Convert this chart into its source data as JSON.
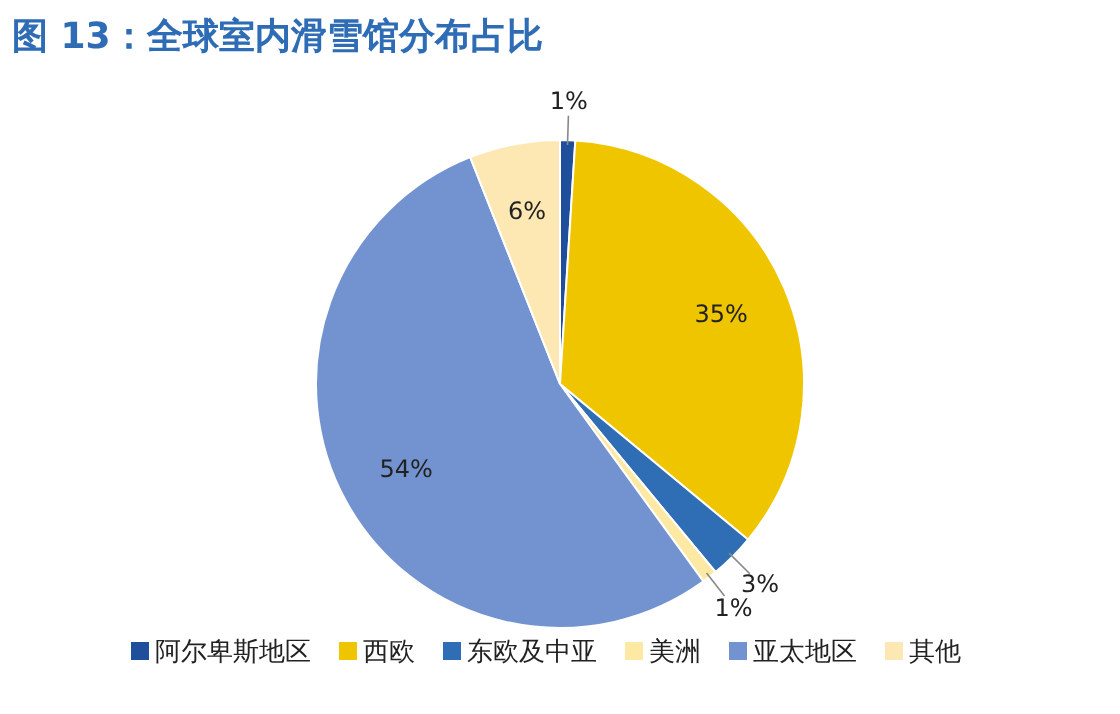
{
  "chart_data": {
    "type": "pie",
    "title": "图 13：全球室内滑雪馆分布占比",
    "categories": [
      "阿尔卑斯地区",
      "西欧",
      "东欧及中亚",
      "美洲",
      "亚太地区",
      "其他"
    ],
    "values": [
      1,
      35,
      3,
      1,
      54,
      6
    ],
    "value_labels": [
      "1%",
      "35%",
      "3%",
      "1%",
      "54%",
      "6%"
    ],
    "colors": [
      "#1f4e9c",
      "#efc500",
      "#2f6db5",
      "#fde9a3",
      "#7393d0",
      "#fde8b4"
    ],
    "legend": "bottom"
  }
}
